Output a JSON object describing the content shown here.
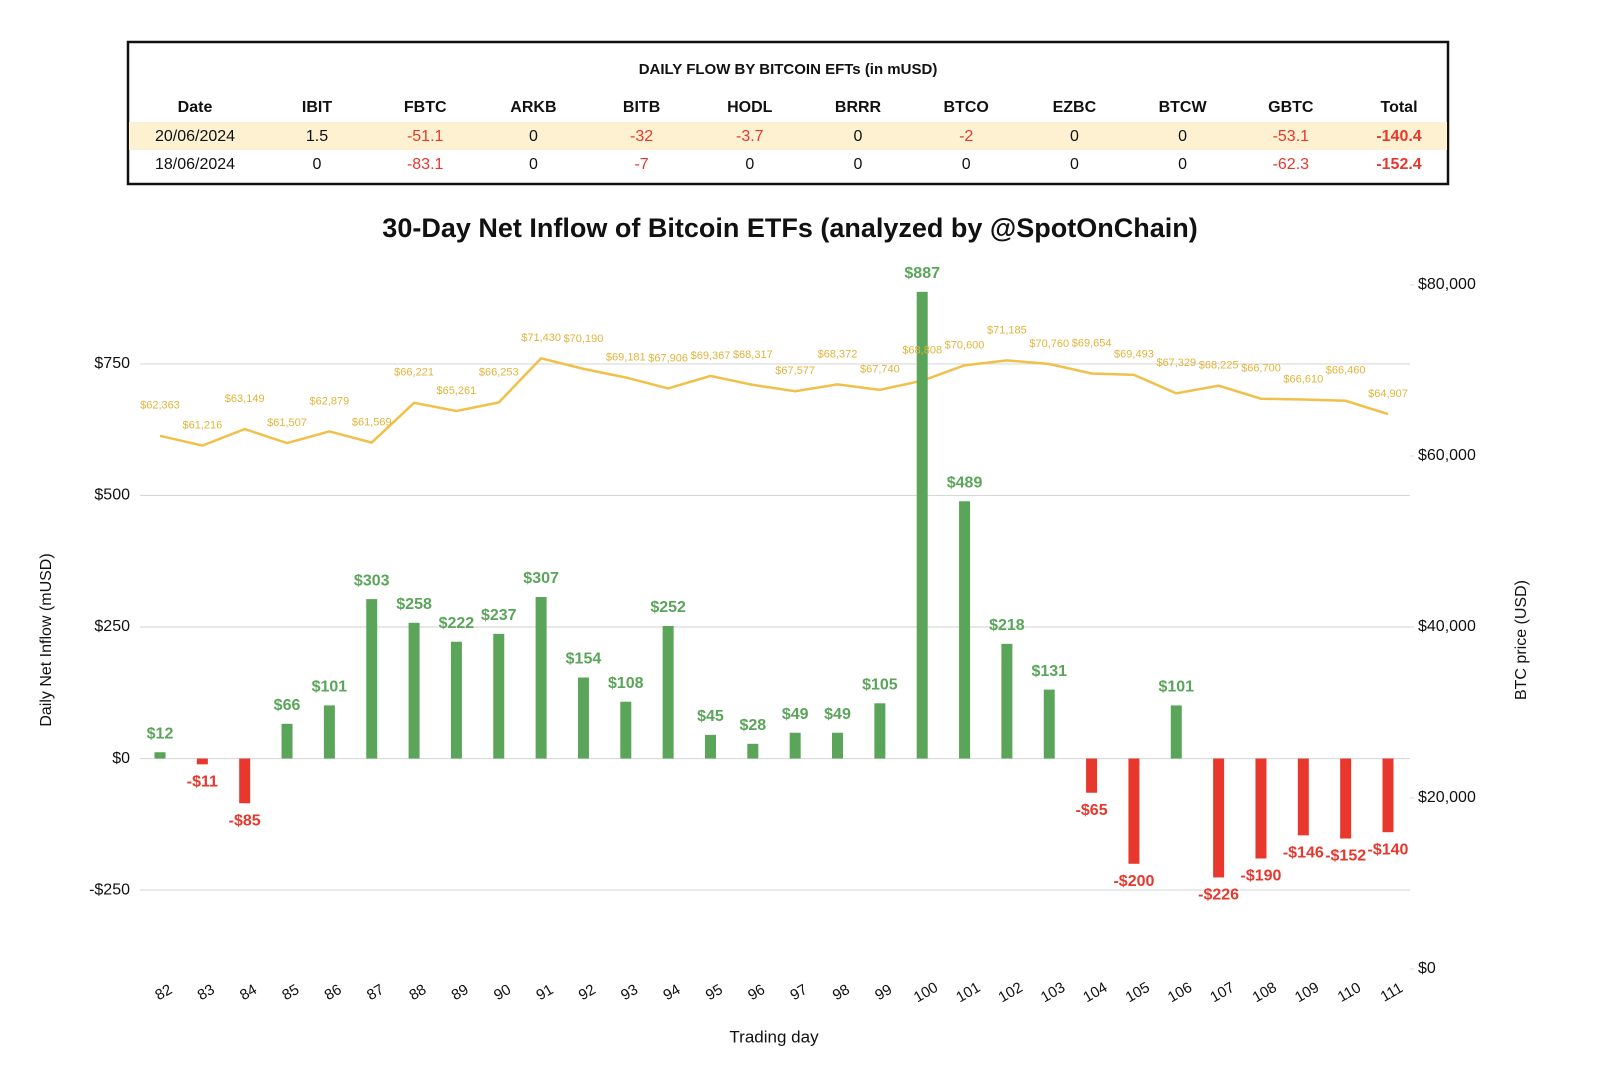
{
  "table": {
    "title": "DAILY FLOW BY BITCOIN EFTs (in mUSD)",
    "columns": [
      "Date",
      "IBIT",
      "FBTC",
      "ARKB",
      "BITB",
      "HODL",
      "BRRR",
      "BTCO",
      "EZBC",
      "BTCW",
      "GBTC",
      "Total"
    ],
    "rows": [
      [
        "20/06/2024",
        1.5,
        -51.1,
        0,
        -32,
        -3.7,
        0,
        -2,
        0,
        0,
        -53.1,
        -140.4
      ],
      [
        "18/06/2024",
        0,
        -83.1,
        0,
        -7,
        0,
        0,
        0,
        0,
        0,
        -62.3,
        -152.4
      ]
    ]
  },
  "chart_data": {
    "type": "bar",
    "title": "30-Day Net Inflow of Bitcoin ETFs (analyzed by @SpotOnChain)",
    "x_label": "Trading day",
    "y_label": "Daily Net Inflow (mUSD)",
    "y2_label": "BTC price (USD)",
    "categories": [
      82,
      83,
      84,
      85,
      86,
      87,
      88,
      89,
      90,
      91,
      92,
      93,
      94,
      95,
      96,
      97,
      98,
      99,
      100,
      101,
      102,
      103,
      104,
      105,
      106,
      107,
      108,
      109,
      110,
      111
    ],
    "series": [
      {
        "type": "bar",
        "color": "#5aa55a",
        "negative_color": "#e8372c",
        "values": [
          12,
          -11,
          -85,
          66,
          101,
          303,
          258,
          222,
          237,
          307,
          154,
          108,
          252,
          45,
          28,
          49,
          49,
          105,
          887,
          489,
          218,
          131,
          -65,
          -200,
          101,
          -226,
          -190,
          -146,
          -152,
          -140
        ],
        "value_labels": [
          "$12",
          "-$11",
          "-$85",
          "$66",
          "$101",
          "$303",
          "$258",
          "$222",
          "$237",
          "$307",
          "$154",
          "$108",
          "$252",
          "$45",
          "$28",
          "$49",
          "$49",
          "$105",
          "$887",
          "$489",
          "$218",
          "$131",
          "-$65",
          "-$200",
          "$101",
          "-$226",
          "-$190",
          "-$146",
          "-$152",
          "-$140"
        ]
      },
      {
        "type": "line",
        "axis": "y2",
        "color": "#f0c04a",
        "label_color": "#e0b43a",
        "values": [
          62363,
          61216,
          63149,
          61507,
          62879,
          61569,
          66221,
          65261,
          66253,
          71430,
          70190,
          69181,
          67906,
          69367,
          68317,
          67577,
          68372,
          67740,
          68808,
          70600,
          71185,
          70760,
          69654,
          69493,
          67329,
          68225,
          66700,
          66610,
          66460,
          64907
        ],
        "value_labels": [
          "$62,363",
          "$61,216",
          "$63,149",
          "$61,507",
          "$62,879",
          "$61,569",
          "$66,221",
          "$65,261",
          "$66,253",
          "$71,430",
          "$70,190",
          "$69,181",
          "$67,906",
          "$69,367",
          "$68,317",
          "$67,577",
          "$68,372",
          "$67,740",
          "$68,808",
          "$70,600",
          "$71,185",
          "$70,760",
          "$69,654",
          "$69,493",
          "$67,329",
          "$68,225",
          "$66,700",
          "$66,610",
          "$66,460",
          "$64,907"
        ]
      }
    ],
    "ylim": [
      -400,
      900
    ],
    "yticks": [
      {
        "value": -250,
        "label": "-$250"
      },
      {
        "value": 0,
        "label": "$0"
      },
      {
        "value": 250,
        "label": "$250"
      },
      {
        "value": 500,
        "label": "$500"
      },
      {
        "value": 750,
        "label": "$750"
      }
    ],
    "y2lim": [
      0,
      80000
    ],
    "y2ticks": [
      {
        "value": 0,
        "label": "$0"
      },
      {
        "value": 20000,
        "label": "$20,000"
      },
      {
        "value": 40000,
        "label": "$40,000"
      },
      {
        "value": 60000,
        "label": "$60,000"
      },
      {
        "value": 80000,
        "label": "$80,000"
      }
    ],
    "grid": true
  }
}
